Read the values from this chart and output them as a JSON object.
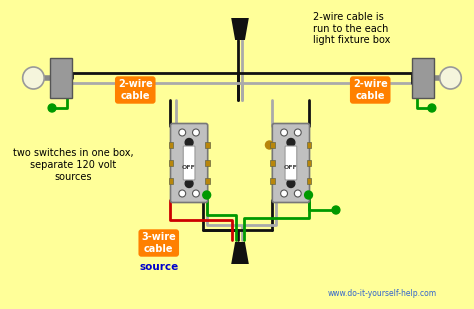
{
  "bg_color": "#FFFF99",
  "title_text": "2-wire cable is\nrun to the each\nlight fixture box",
  "left_label": "two switches in one box,\nseparate 120 volt\nsources",
  "label_2wire_left": "2-wire\ncable",
  "label_2wire_right": "2-wire\ncable",
  "label_3wire": "3-wire\ncable",
  "label_source": "source",
  "website": "www.do-it-yourself-help.com",
  "orange_bg": "#FF8000",
  "blue_text": "#0000CC",
  "wire_black": "#111111",
  "wire_white": "#AAAAAA",
  "wire_green": "#009900",
  "wire_red": "#CC0000",
  "switch_fill": "#C0C0C0",
  "switch_border": "#888888"
}
